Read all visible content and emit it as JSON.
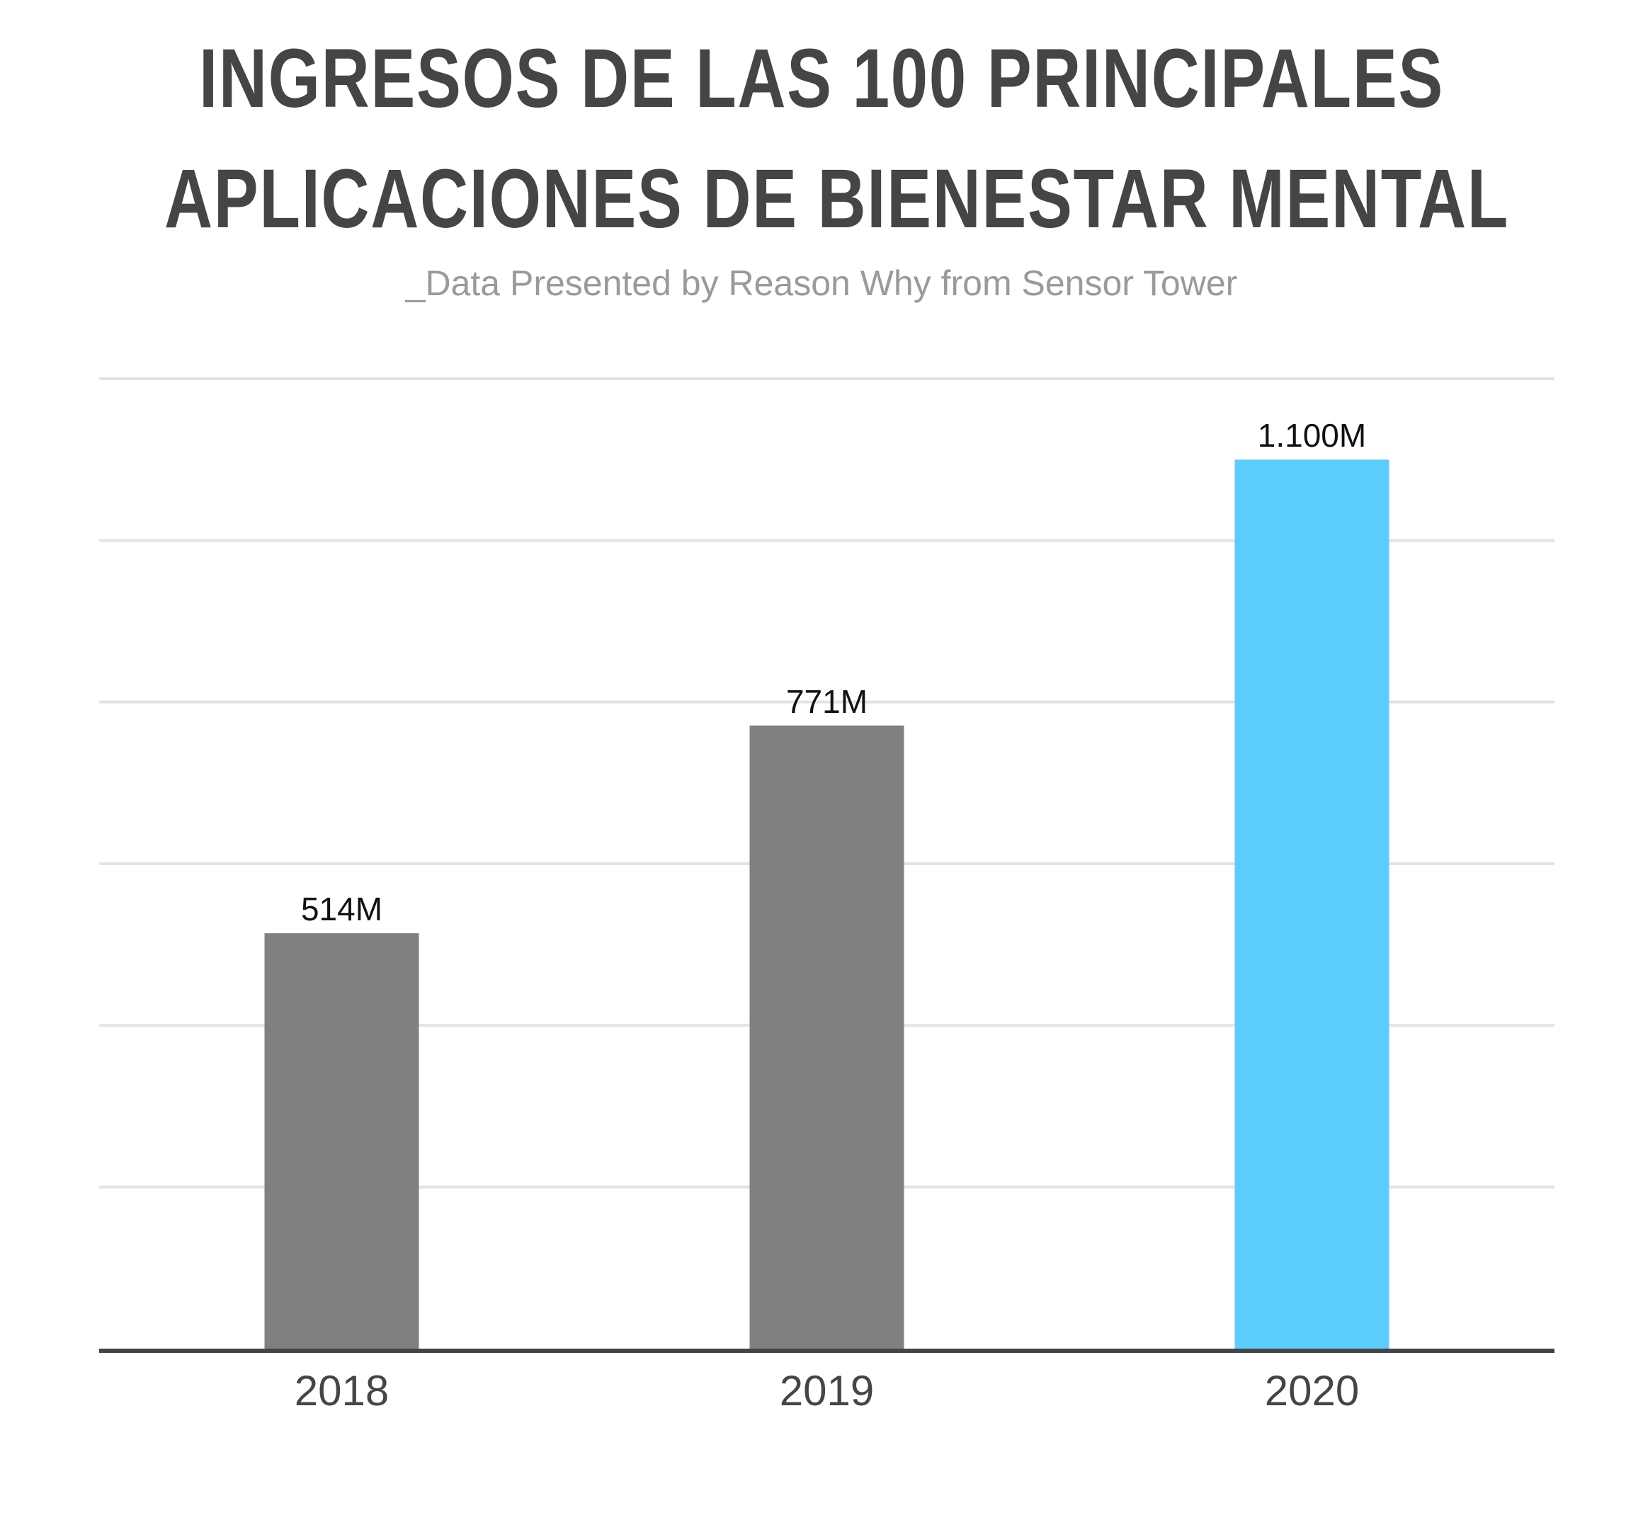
{
  "chart_data": {
    "type": "bar",
    "title_lines": [
      "INGRESOS DE LAS 100 PRINCIPALES",
      "APLICACIONES DE BIENESTAR MENTAL"
    ],
    "subtitle": "_Data Presented by Reason Why from Sensor Tower",
    "categories": [
      "2018",
      "2019",
      "2020"
    ],
    "values": [
      514,
      771,
      1100
    ],
    "data_labels": [
      "514M",
      "771M",
      "1.100M"
    ],
    "bar_colors": [
      "#808080",
      "#808080",
      "#5bccfb"
    ],
    "ylim": [
      0,
      1200
    ],
    "grid": true,
    "xlabel": "",
    "ylabel": ""
  }
}
